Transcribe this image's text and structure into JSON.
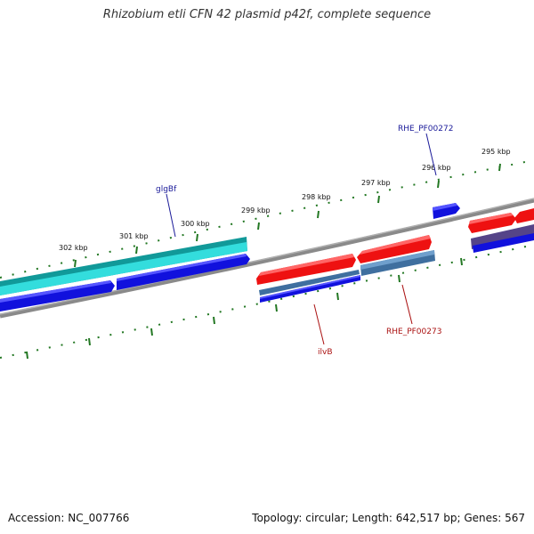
{
  "title": "Rhizobium etli CFN 42 plasmid p42f, complete sequence",
  "footer": {
    "accession": "Accession: NC_007766",
    "stats": "Topology: circular; Length: 642,517 bp; Genes: 567"
  },
  "ticks": [
    {
      "label": "302 kbp",
      "pos": 302
    },
    {
      "label": "301 kbp",
      "pos": 301
    },
    {
      "label": "300 kbp",
      "pos": 300
    },
    {
      "label": "299 kbp",
      "pos": 299
    },
    {
      "label": "298 kbp",
      "pos": 298
    },
    {
      "label": "297 kbp",
      "pos": 297
    },
    {
      "label": "296 kbp",
      "pos": 296
    },
    {
      "label": "295 kbp",
      "pos": 295
    }
  ],
  "gene_labels": [
    {
      "label": "glgBf",
      "color": "#1a1a99"
    },
    {
      "label": "RHE_PF00272",
      "color": "#1a1a99"
    },
    {
      "label": "ilvB",
      "color": "#aa1111"
    },
    {
      "label": "RHE_PF00273",
      "color": "#aa1111"
    }
  ],
  "colors": {
    "forward_cds": "#ee1111",
    "reverse_cds": "#1111dd",
    "gene_cyan": "#22cccc",
    "gene_steel": "#4477aa",
    "backbone": "#808080",
    "ticks": "#227722"
  }
}
